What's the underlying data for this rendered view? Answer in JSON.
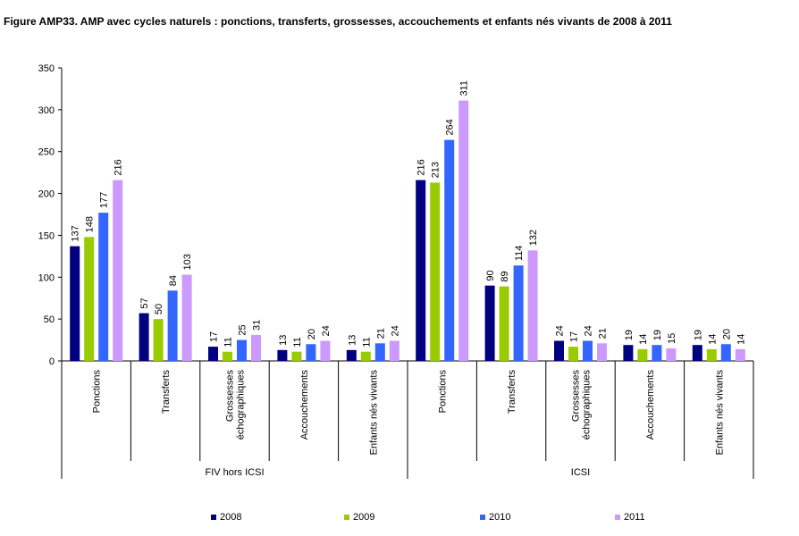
{
  "chart_data": {
    "type": "bar",
    "title": "Figure AMP33. AMP avec cycles naturels : ponctions, transferts, grossesses, accouchements et enfants nés vivants de 2008 à 2011",
    "ylim": [
      0,
      350
    ],
    "yticks": [
      0,
      50,
      100,
      150,
      200,
      250,
      300,
      350
    ],
    "grid": false,
    "legend_position": "bottom",
    "groups": [
      {
        "name": "FIV hors ICSI",
        "categories": [
          "Ponctions",
          "Transferts",
          "Grossesses échographiques",
          "Accouchements",
          "Enfants nés vivants"
        ]
      },
      {
        "name": "ICSI",
        "categories": [
          "Ponctions",
          "Transferts",
          "Grossesses échographiques",
          "Accouchements",
          "Enfants nés vivants"
        ]
      }
    ],
    "series": [
      {
        "name": "2008",
        "color": "#000080",
        "values": [
          137,
          57,
          17,
          13,
          13,
          216,
          90,
          24,
          19,
          19
        ]
      },
      {
        "name": "2009",
        "color": "#99CC00",
        "values": [
          148,
          50,
          11,
          11,
          11,
          213,
          89,
          17,
          14,
          14
        ]
      },
      {
        "name": "2010",
        "color": "#3366FF",
        "values": [
          177,
          84,
          25,
          20,
          21,
          264,
          114,
          24,
          19,
          20
        ]
      },
      {
        "name": "2011",
        "color": "#CC99FF",
        "values": [
          216,
          103,
          31,
          24,
          24,
          311,
          132,
          21,
          15,
          14
        ]
      }
    ]
  }
}
